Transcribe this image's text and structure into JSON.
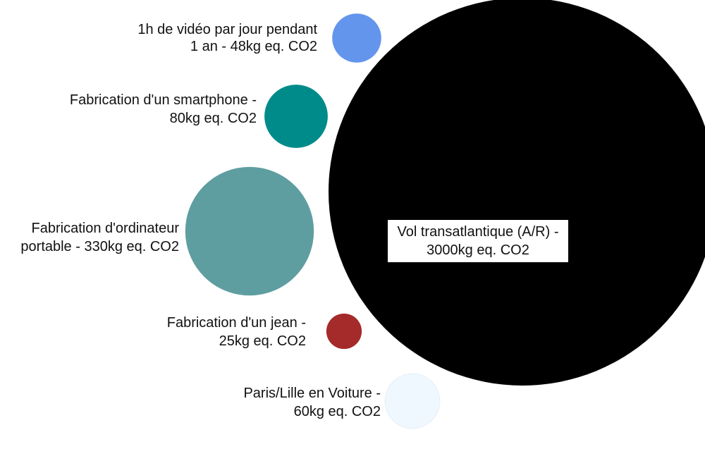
{
  "chart_data": {
    "type": "bubble",
    "unit": "kg eq. CO2",
    "items": [
      {
        "lines": [
          "1h de vidéo par jour pendant",
          "1 an - 48kg eq. CO2"
        ],
        "value": 48,
        "color": "#6495ED"
      },
      {
        "lines": [
          "Fabrication d'un smartphone -",
          "80kg eq. CO2"
        ],
        "value": 80,
        "color": "#008B8B"
      },
      {
        "lines": [
          "Fabrication d'ordinateur",
          "portable - 330kg eq. CO2"
        ],
        "value": 330,
        "color": "#5F9EA0"
      },
      {
        "lines": [
          "Fabrication d'un jean -",
          "25kg eq. CO2"
        ],
        "value": 25,
        "color": "#A52A2A"
      },
      {
        "lines": [
          "Paris/Lille en Voiture -",
          "60kg eq. CO2"
        ],
        "value": 60,
        "color": "#F0F8FF"
      },
      {
        "lines": [
          "Vol transatlantique (A/R) -",
          "3000kg eq. CO2"
        ],
        "value": 3000,
        "color": "#000000"
      }
    ]
  }
}
